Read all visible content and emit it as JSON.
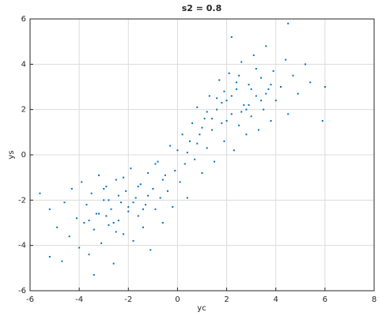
{
  "chart_data": {
    "type": "scatter",
    "title": "s2 = 0.8",
    "x_label": "yc",
    "y_label": "ys",
    "color": "#0072bd",
    "grid": true,
    "xlim": [
      -6,
      8
    ],
    "ylim": [
      -6,
      6
    ],
    "xticks": [
      -6,
      -4,
      -2,
      0,
      2,
      4,
      6,
      8
    ],
    "yticks": [
      -6,
      -4,
      -2,
      0,
      2,
      4,
      6
    ],
    "x": [
      -5.6,
      -5.2,
      -4.9,
      -4.7,
      -4.6,
      -4.4,
      -4.3,
      -4.1,
      -4.0,
      -3.9,
      -3.8,
      -3.7,
      -3.6,
      -3.5,
      -3.4,
      -3.3,
      -3.2,
      -3.1,
      -3.0,
      -2.9,
      -2.8,
      -2.7,
      -2.6,
      -2.5,
      -2.4,
      -2.3,
      -2.2,
      -2.1,
      -2.0,
      -1.9,
      -1.8,
      -1.7,
      -1.6,
      -1.5,
      -1.4,
      -1.3,
      -1.2,
      -1.1,
      -1.0,
      -0.9,
      -0.8,
      -0.7,
      -0.6,
      -0.5,
      -0.4,
      -0.3,
      -0.2,
      -0.1,
      0.0,
      0.1,
      0.2,
      0.3,
      0.4,
      0.5,
      0.6,
      0.7,
      0.8,
      0.9,
      1.0,
      1.1,
      1.2,
      1.3,
      1.4,
      1.5,
      1.6,
      1.7,
      1.8,
      1.9,
      2.0,
      2.1,
      2.2,
      2.3,
      2.4,
      2.5,
      2.6,
      2.7,
      2.8,
      2.9,
      3.0,
      3.1,
      3.2,
      3.3,
      3.4,
      3.5,
      3.6,
      3.7,
      3.8,
      3.9,
      4.0,
      4.2,
      4.4,
      4.5,
      4.7,
      4.9,
      5.2,
      5.4,
      5.9,
      6.0,
      4.5,
      2.2,
      -3.4,
      -5.2,
      -2.8,
      -2.4,
      -2.0,
      -1.6,
      -3.2,
      -2.6,
      -1.8,
      -2.2,
      -3.6,
      -1.2,
      -0.6,
      -2.9,
      -3.0,
      -1.4,
      -2.5,
      -0.9,
      1.8,
      2.2,
      2.6,
      3.0,
      1.4,
      2.4,
      3.4,
      1.0,
      2.8,
      3.2,
      1.6,
      0.4,
      2.0,
      3.6,
      1.2,
      2.9,
      0.8,
      3.8,
      1.9,
      2.5
    ],
    "y": [
      -1.7,
      -2.4,
      -3.2,
      -4.7,
      -2.1,
      -3.6,
      -1.5,
      -2.8,
      -4.1,
      -1.2,
      -3.0,
      -2.2,
      -4.4,
      -1.7,
      -3.3,
      -2.6,
      -0.9,
      -3.9,
      -2.0,
      -1.4,
      -3.1,
      -2.4,
      -4.8,
      -1.1,
      -2.9,
      -2.1,
      -3.5,
      -1.6,
      -2.5,
      -0.6,
      -3.8,
      -1.9,
      -2.7,
      -1.3,
      -3.2,
      -2.2,
      -0.8,
      -4.2,
      -1.5,
      -2.4,
      -0.3,
      -1.9,
      -3.0,
      -0.9,
      -1.6,
      0.4,
      -2.3,
      -0.7,
      0.2,
      -1.2,
      0.9,
      -0.4,
      -1.9,
      0.6,
      1.4,
      -0.2,
      2.1,
      0.9,
      -0.8,
      1.6,
      0.3,
      2.6,
      1.1,
      -0.3,
      2.0,
      3.3,
      1.4,
      0.6,
      2.4,
      3.6,
      1.8,
      0.2,
      2.9,
      1.3,
      4.1,
      2.2,
      0.9,
      3.1,
      1.7,
      4.4,
      2.6,
      1.1,
      3.4,
      2.0,
      4.8,
      2.9,
      1.5,
      3.7,
      2.4,
      3.0,
      4.2,
      1.8,
      3.5,
      2.7,
      4.0,
      3.2,
      1.5,
      3.0,
      5.8,
      5.2,
      -5.3,
      -4.5,
      -2.0,
      -1.8,
      -2.3,
      -1.4,
      -2.6,
      -3.0,
      -2.1,
      -1.0,
      -2.9,
      -1.8,
      -1.1,
      -2.7,
      -1.5,
      -2.4,
      -3.4,
      -0.4,
      2.3,
      2.6,
      1.9,
      2.9,
      1.6,
      3.2,
      2.4,
      1.2,
      2.0,
      3.8,
      2.5,
      0.1,
      1.5,
      2.7,
      1.9,
      2.2,
      0.5,
      3.1,
      2.8,
      3.5
    ]
  }
}
